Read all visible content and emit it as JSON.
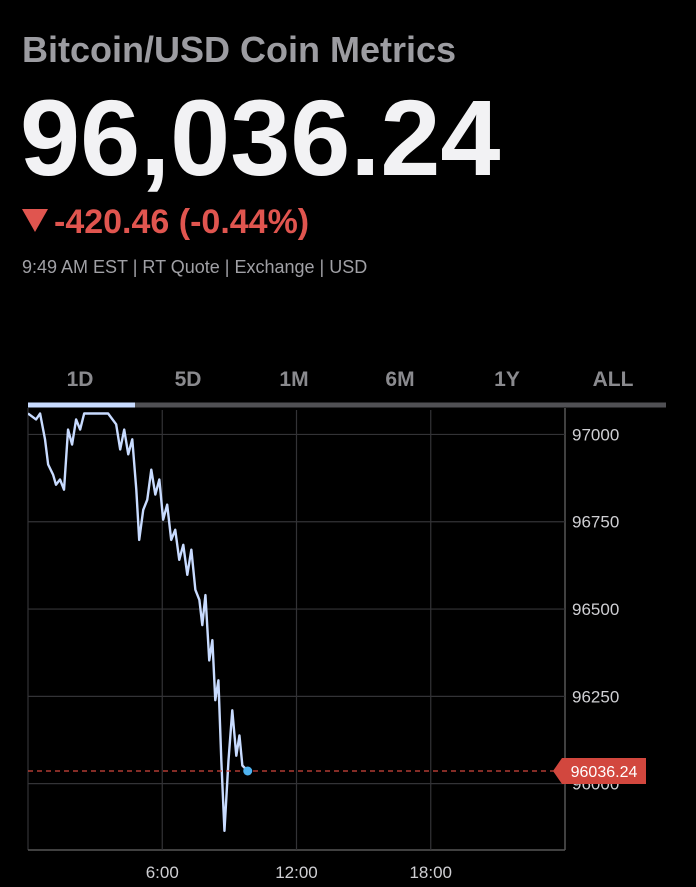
{
  "header": {
    "title": "Bitcoin/USD Coin Metrics",
    "price": "96,036.24",
    "change": "-420.46 (-0.44%)",
    "meta": "9:49 AM EST | RT Quote | Exchange | USD"
  },
  "tabs": [
    "1D",
    "5D",
    "1M",
    "6M",
    "1Y",
    "ALL"
  ],
  "chart_data": {
    "type": "line",
    "x": [
      0,
      0.36,
      0.54,
      0.76,
      0.9,
      1.12,
      1.25,
      1.43,
      1.61,
      1.79,
      1.97,
      2.15,
      2.33,
      2.51,
      2.91,
      3.58,
      3.94,
      4.12,
      4.3,
      4.48,
      4.66,
      4.84,
      4.97,
      5.15,
      5.33,
      5.51,
      5.69,
      5.87,
      6.04,
      6.22,
      6.4,
      6.58,
      6.76,
      6.94,
      7.12,
      7.3,
      7.48,
      7.66,
      7.79,
      7.93,
      8.1,
      8.24,
      8.37,
      8.51,
      8.64,
      8.78,
      8.96,
      9.13,
      9.31,
      9.45,
      9.58,
      9.82
    ],
    "series": [
      {
        "color": "#c8dbff",
        "values": [
          97060,
          97043,
          97060,
          96986,
          96914,
          96885,
          96856,
          96871,
          96842,
          97014,
          96971,
          97043,
          97014,
          97060,
          97060,
          97060,
          97029,
          96957,
          97014,
          96943,
          96986,
          96842,
          96698,
          96784,
          96813,
          96899,
          96828,
          96871,
          96756,
          96799,
          96698,
          96727,
          96641,
          96684,
          96598,
          96670,
          96555,
          96526,
          96454,
          96540,
          96353,
          96411,
          96239,
          96296,
          96066,
          95865,
          96066,
          96210,
          96080,
          96138,
          96052,
          96036.24
        ]
      }
    ],
    "last_price": 96036.24,
    "last_price_color": "#d2473e",
    "xlim": [
      0,
      24
    ],
    "xticks": [
      {
        "value": 6,
        "label": "6:00"
      },
      {
        "value": 12,
        "label": "12:00"
      },
      {
        "value": 18,
        "label": "18:00"
      }
    ],
    "ylim": [
      95810,
      97070
    ],
    "yticks": [
      96000,
      96250,
      96500,
      96750,
      97000
    ],
    "grid": true
  }
}
